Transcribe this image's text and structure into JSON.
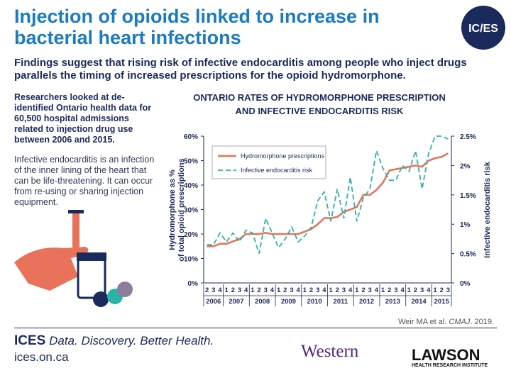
{
  "header": {
    "title": "Injection of opioids linked to increase in bacterial heart infections",
    "logo": "IC/ES",
    "subtitle": "Findings suggest that rising risk of infective endocarditis among people who inject drugs parallels the timing of increased prescriptions for the opioid hydromorphone."
  },
  "sidebar": {
    "paragraph_1": "Researchers looked at de-identified Ontario health data for 60,500 hospital admissions related to injection drug use between 2006 and 2015.",
    "paragraph_2": "Infective endocarditis is an infection of the inner lining of the heart that can be life-threatening. It can occur from re-using or sharing injection equipment."
  },
  "chart_data": {
    "type": "line",
    "title": [
      "ONTARIO RATES OF HYDROMORPHONE PRESCRIPTION",
      "AND INFECTIVE ENDOCARDITIS RISK"
    ],
    "y_label": [
      "Hydromorphone as %",
      "of total opioid prescriptions"
    ],
    "y2_label": "Infective endocarditis risk",
    "categories": [
      "2",
      "3",
      "4",
      "1",
      "2",
      "3",
      "4",
      "1",
      "2",
      "3",
      "4",
      "1",
      "2",
      "3",
      "4",
      "1",
      "2",
      "3",
      "4",
      "1",
      "2",
      "3",
      "4",
      "1",
      "2",
      "3",
      "4",
      "1",
      "2",
      "3",
      "4",
      "1",
      "2",
      "3",
      "4",
      "1",
      "2",
      "3"
    ],
    "years": [
      "2006",
      "2007",
      "2008",
      "2009",
      "2010",
      "2011",
      "2012",
      "2013",
      "2014",
      "2015"
    ],
    "ylim": [
      0,
      60
    ],
    "yticks": [
      {
        "value": 0,
        "label": "0%"
      },
      {
        "value": 10,
        "label": "10%"
      },
      {
        "value": 20,
        "label": "20%"
      },
      {
        "value": 30,
        "label": "30%"
      },
      {
        "value": 40,
        "label": "40%"
      },
      {
        "value": 50,
        "label": "50%"
      },
      {
        "value": 60,
        "label": "60%"
      }
    ],
    "y2lim": [
      0,
      2.5
    ],
    "y2ticks": [
      {
        "value": 0,
        "label": "0%"
      },
      {
        "value": 0.5,
        "label": "0.5%"
      },
      {
        "value": 1,
        "label": "1%"
      },
      {
        "value": 1.5,
        "label": "1.5%"
      },
      {
        "value": 2,
        "label": "2%"
      },
      {
        "value": 2.5,
        "label": "2.5%"
      }
    ],
    "legend": "top-left",
    "series": [
      {
        "name": "Hydromorphone prescriptions",
        "color": "#e8735a",
        "dash": false,
        "values": [
          15,
          15,
          16,
          16,
          17,
          18,
          20,
          20,
          20,
          20.5,
          20,
          20,
          20,
          20,
          20,
          21,
          22,
          24,
          26.5,
          26.5,
          27,
          29,
          30,
          31,
          36,
          36,
          38,
          41,
          46,
          46.5,
          47,
          47.5,
          48,
          47.5,
          50,
          51,
          51.5,
          53
        ]
      },
      {
        "name": "Infective endocarditis risk",
        "color": "#2ab3a6",
        "dash": true,
        "axis": "y2",
        "values": [
          0.65,
          0.65,
          0.85,
          0.7,
          0.85,
          0.7,
          0.9,
          0.85,
          0.5,
          1.1,
          0.85,
          0.6,
          0.75,
          0.95,
          0.7,
          0.8,
          0.95,
          1.4,
          1.55,
          1.05,
          1.6,
          1.1,
          1.8,
          1.05,
          1.45,
          1.6,
          2.25,
          1.95,
          1.75,
          1.75,
          2.0,
          1.9,
          2.25,
          1.6,
          2.2,
          2.5,
          2.5,
          2.45
        ]
      }
    ]
  },
  "footer": {
    "brand": "ICES",
    "tagline": "Data. Discovery. Better Health.",
    "url": "ices.on.ca",
    "citation": [
      "Weir MA et al. ",
      "CMAJ",
      ". 2019."
    ],
    "partner_1": "Western",
    "partner_2": "LAWSON",
    "partner_2_sub": "HEALTH RESEARCH INSTITUTE"
  }
}
